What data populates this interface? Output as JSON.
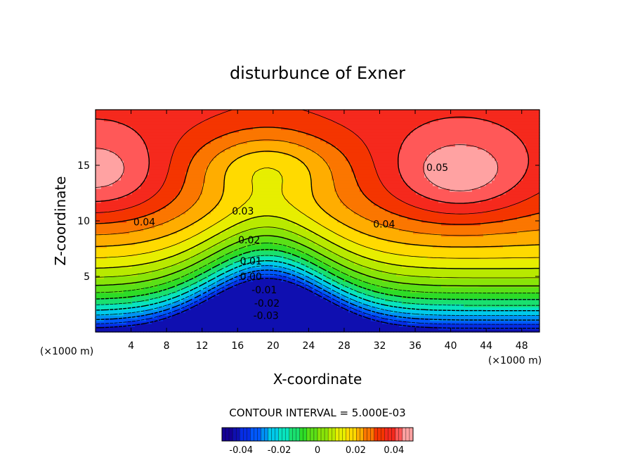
{
  "chart_data": {
    "type": "heatmap",
    "title": "disturbunce of Exner",
    "xlabel": "X-coordinate",
    "ylabel": "Z-coordinate",
    "x_unit": "(×1000 m)",
    "xlim": [
      0,
      50
    ],
    "ylim": [
      0,
      20
    ],
    "x_ticks": [
      4,
      8,
      12,
      16,
      20,
      24,
      28,
      32,
      36,
      40,
      44,
      48
    ],
    "y_ticks": [
      5,
      10,
      15
    ],
    "contour_interval_label": "CONTOUR INTERVAL = 5.000E-03",
    "contour_interval": 0.005,
    "value_range": [
      -0.045,
      0.05
    ],
    "contour_labels": [
      {
        "text": "-0.03",
        "value": -0.03,
        "x": 19.2,
        "z": 1.5
      },
      {
        "text": "-0.02",
        "value": -0.02,
        "x": 19.3,
        "z": 2.6
      },
      {
        "text": "-0.01",
        "value": -0.01,
        "x": 19.0,
        "z": 3.8
      },
      {
        "text": "0.00",
        "value": 0.0,
        "x": 17.5,
        "z": 5.0
      },
      {
        "text": "0.01",
        "value": 0.01,
        "x": 17.5,
        "z": 6.4
      },
      {
        "text": "0.02",
        "value": 0.02,
        "x": 17.3,
        "z": 8.3
      },
      {
        "text": "0.03",
        "value": 0.03,
        "x": 16.6,
        "z": 10.9
      },
      {
        "text": "0.04",
        "value": 0.04,
        "x": 5.5,
        "z": 9.9
      },
      {
        "text": "0.04",
        "value": 0.04,
        "x": 32.5,
        "z": 9.7
      },
      {
        "text": "0.05",
        "value": 0.05,
        "x": 38.5,
        "z": 14.8
      }
    ],
    "colorbar": {
      "ticks": [
        "-0.04",
        "-0.02",
        "0",
        "0.02",
        "0.04"
      ],
      "tick_values": [
        -0.04,
        -0.02,
        0,
        0.02,
        0.04
      ],
      "range": [
        -0.05,
        0.05
      ]
    },
    "colors": {
      "low": "#1500a0",
      "mid": "#30e000",
      "high": "#e00000",
      "above_max": "#ffffff"
    }
  }
}
